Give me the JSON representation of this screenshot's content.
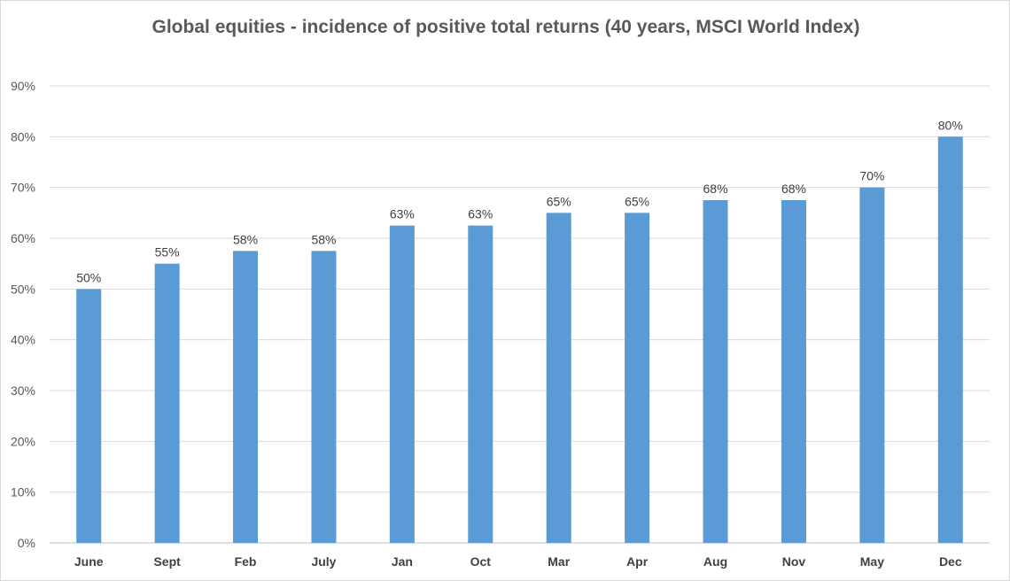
{
  "chart_data": {
    "type": "bar",
    "title": "Global equities - incidence of positive total returns (40 years, MSCI World Index)",
    "categories": [
      "June",
      "Sept",
      "Feb",
      "July",
      "Jan",
      "Oct",
      "Mar",
      "Apr",
      "Aug",
      "Nov",
      "May",
      "Dec"
    ],
    "values": [
      50,
      55,
      57.5,
      57.5,
      62.5,
      62.5,
      65,
      65,
      67.5,
      67.5,
      70,
      80
    ],
    "data_labels": [
      "50%",
      "55%",
      "58%",
      "58%",
      "63%",
      "63%",
      "65%",
      "65%",
      "68%",
      "68%",
      "70%",
      "80%"
    ],
    "y_ticks": [
      "0%",
      "10%",
      "20%",
      "30%",
      "40%",
      "50%",
      "60%",
      "70%",
      "80%",
      "90%"
    ],
    "ylim": [
      0,
      90
    ],
    "grid": true,
    "bar_color": "#5b9bd5"
  }
}
